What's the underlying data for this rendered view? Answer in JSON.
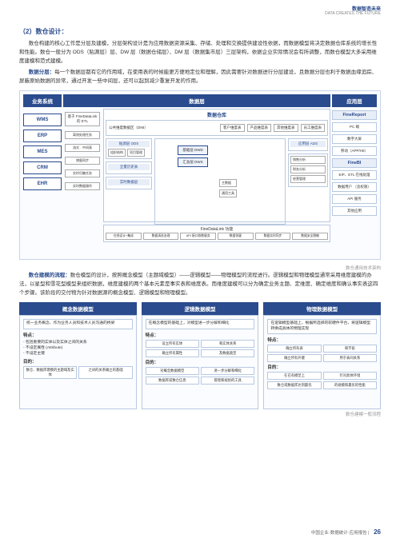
{
  "header": {
    "brand": "数据智造未来",
    "sub": "DATA CREATES THE FUTURE"
  },
  "s1": {
    "title": "（2）数仓设计：",
    "p1": "数仓构建的核心工作是分层及建模，分层架构设计是为应用数据资源采集、存储、处理和交换提供建设性依据，而数据模型将决定数据仓库系统的增长性和性能。数仓一般分为 ODS（贴源层）层、DW 层（数据仓储层）、DM 层（数据集市层）三层架构，依据企业实际情况会有所调整，而数仓模型大多采用维度建模和范式建模。",
    "kw2": "数据分层：",
    "p2": "每一个数据层都有它的作用域，在使用表的时候能更方便地定位和理解，因此需要针对数据进行分层建设，且数据分层也利于数据血缘追踪、屏蔽原始数据的异常，通过开发一些中间层，还可以起到减少重复开发的作用。"
  },
  "d1": {
    "h1": "业务系统",
    "h2": "数据层",
    "h3": "应用层",
    "biz": [
      "WMS",
      "ERP",
      "MES",
      "CRM",
      "EHR"
    ],
    "etl1": "基于\nFineDataLink\n的 ETL",
    "etl_flows": [
      "离线处理任务",
      "流式→中间表",
      "增量同步",
      "实时归集任务",
      "实时数据操作"
    ],
    "wh_title": "数据仓库",
    "dm": {
      "label": "公共维度数据区（DIM）",
      "tags": [
        "客户维度表",
        "产品维度表",
        "其他维度表",
        "员工维度表"
      ]
    },
    "layers": {
      "left": [
        {
          "label": "贴源层\nODS",
          "tags": [
            "组织结构",
            "项目管理"
          ]
        },
        {
          "label": "全量历史表",
          "tags": []
        },
        {
          "label": "实时数据层",
          "tags": []
        }
      ],
      "mid_stack": [
        "基础层\nDWD",
        "汇总层\nDWS"
      ],
      "mid_tags": [
        "主数据",
        "通用工具"
      ],
      "right": [
        {
          "label": "应用层\nADS",
          "tags": []
        },
        {
          "label": "",
          "tags": [
            "销售分析",
            "财务分析",
            "经营管理"
          ]
        }
      ]
    },
    "fdl": {
      "title": "FineDataLink 功能",
      "tags": [
        "在线设计+集成",
        "数据清洗治理",
        "API 接口取数服务",
        "数据答疑",
        "数据实时同步",
        "数据安全脱敏"
      ]
    },
    "app": {
      "g1": "FineReport",
      "g1_items": [
        "PC 端",
        "数字大屏",
        "移动（APP/H5）"
      ],
      "g2": "FineBI",
      "g2_items": [
        "EIP、ETL\n在线处理",
        "数据用户\n（含权限）"
      ],
      "others": [
        "API 服务",
        "其他应用"
      ]
    },
    "caption": "数仓通用技术架构"
  },
  "s2": {
    "kw": "数仓建模的流程：",
    "p1": "数仓模型的设计，按照概念模型（主题域模型）——逻辑模型——物理模型的流程进行。逻辑模型和物理模型通常采用维度建模的办法，以星型和雪花型模型来组织数据，维度建模的两个基本元素是事实表和维度表。而维度建模可以分为确定业务主题、定维度、确定维度和确认事实表这四个步骤。该阶段的交付物为针对数据源的概念模型、逻辑模型和物理模型。"
  },
  "d2": {
    "cols": [
      {
        "head": "概念数据模型",
        "box1": "统一业务概念、作为业务人员和技术人员沟通的桥梁",
        "feats_label": "特点：",
        "feats": [
          "- 包括重要的实体以及实体之间的关系",
          "- 不设定属性 (Attribute)",
          "- 不设定主键"
        ],
        "goal_label": "目的：",
        "goals": [
          [
            "数仓、数据库建模的主题域及实体",
            "之间的关系确立的基础"
          ]
        ]
      },
      {
        "head": "逻辑数据模型",
        "box1": "在概念模型的基础上，对模型进一步分解和细化",
        "feats_label": "特点：",
        "feats": [
          [
            "设立所有实体",
            "和实体关系"
          ],
          [
            "确立所有属性",
            "及数据类型"
          ]
        ],
        "goal_label": "目的：",
        "goals": [
          [
            "对概念数据模型",
            "进一步分解和细化"
          ],
          [
            "数据库或数仓信息",
            "管理和规划的工具"
          ]
        ]
      },
      {
        "head": "物理数据模型",
        "box1": "在逻辑模型基础上，根据所选择的软硬件平台，将逻辑模型转换成具体的物理实现",
        "feats_label": "特点：",
        "feats": [
          [
            "确立所有表",
            "和字段"
          ],
          [
            "确立所有外键",
            "用于表间关系"
          ]
        ],
        "goal_label": "目的：",
        "goals": [
          [
            "在已有模型上",
            "针对具体环境"
          ],
          [
            "数仓或数据库达到最优",
            "的规模和最优的性能"
          ]
        ]
      }
    ],
    "caption": "数仓建模一般流程"
  },
  "footer": {
    "text": "中国企业·数据统计·应用报告",
    "page": "26"
  }
}
